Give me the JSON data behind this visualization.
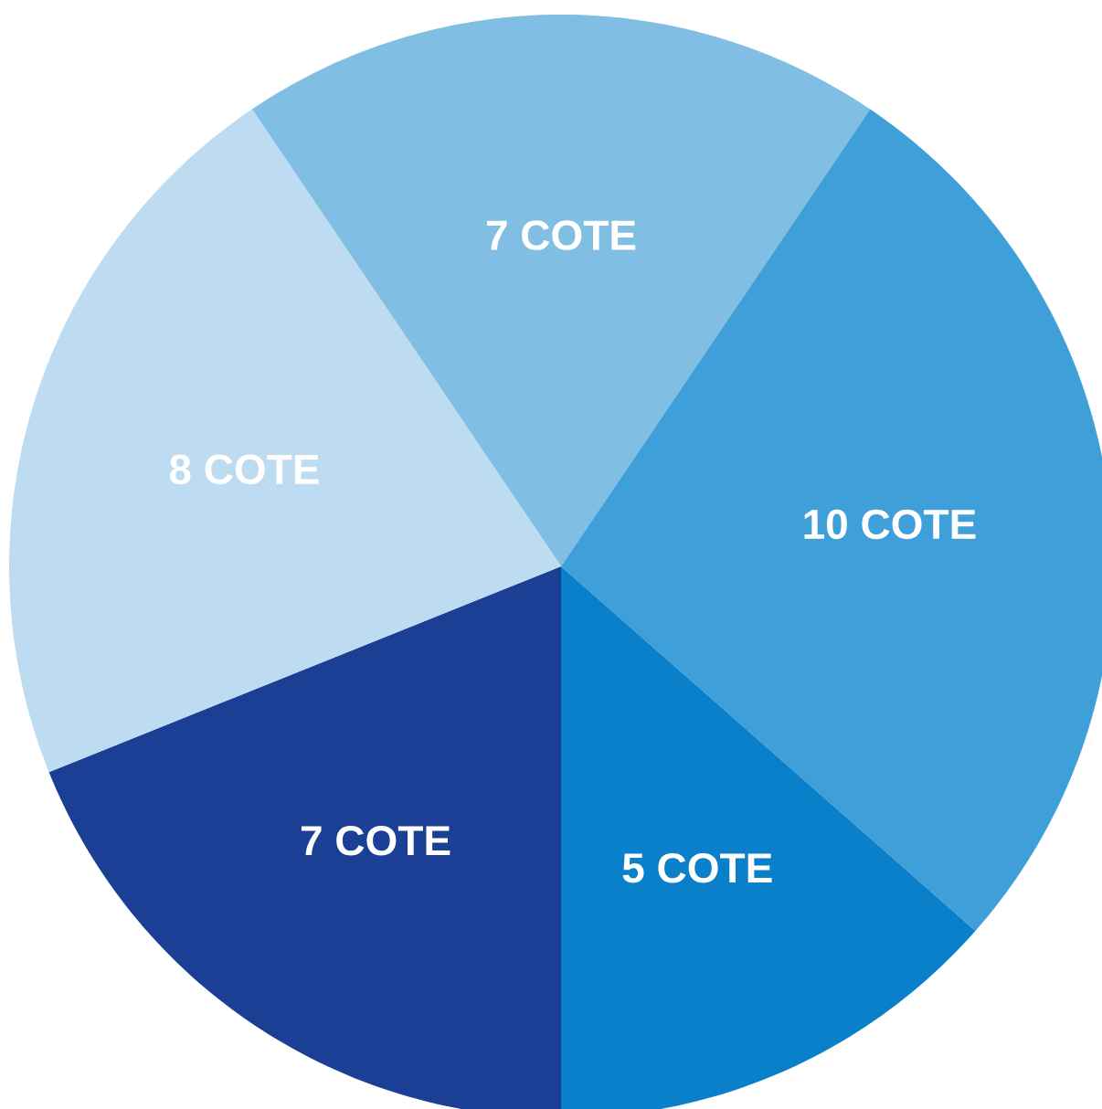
{
  "chart_data": {
    "type": "pie",
    "categories": [
      "7 COTE",
      "10 COTE",
      "5 COTE",
      "7 COTE",
      "8 COTE"
    ],
    "values": [
      7,
      10,
      5,
      7,
      8
    ],
    "colors": [
      "#80bee3",
      "#3f9fd8",
      "#0a7fca",
      "#1c3f96",
      "#bddcf1"
    ]
  }
}
